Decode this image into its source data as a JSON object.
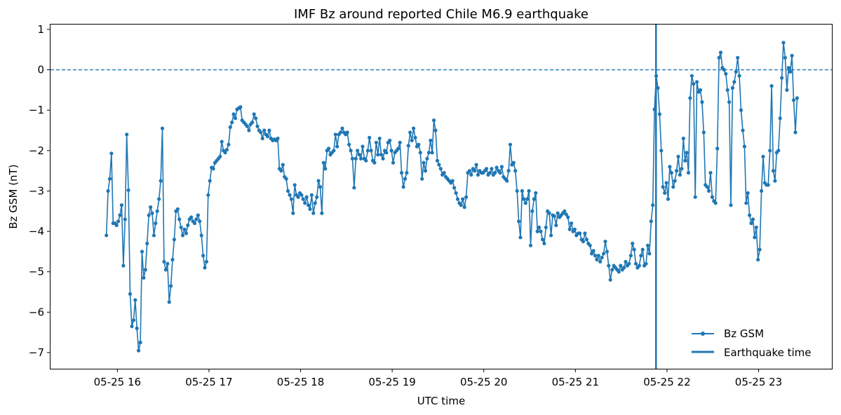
{
  "chart_data": {
    "type": "line",
    "title": "IMF Bz around reported Chile M6.9 earthquake",
    "xlabel": "UTC time",
    "ylabel": "Bz GSM (nT)",
    "x_ticks": [
      "05-25 16",
      "05-25 17",
      "05-25 18",
      "05-25 19",
      "05-25 20",
      "05-25 21",
      "05-25 22",
      "05-25 23"
    ],
    "y_ticks": [
      -7,
      -6,
      -5,
      -4,
      -3,
      -2,
      -1,
      0,
      1
    ],
    "xlim_hours": [
      15.27,
      23.8
    ],
    "ylim": [
      -7.4,
      1.12
    ],
    "grid": false,
    "legend_position": "lower-right",
    "colors": {
      "series": "#1f77b4"
    },
    "reference_line": {
      "y": 0,
      "style": "dashed"
    },
    "event": {
      "name": "Earthquake time",
      "x_hour": 21.88
    },
    "series": [
      {
        "name": "Bz GSM",
        "x_start_hour": 15.88,
        "x_end_hour": 23.42,
        "values": [
          -4.1,
          -3.0,
          -2.7,
          -2.07,
          -3.8,
          -3.8,
          -3.85,
          -3.75,
          -3.6,
          -3.35,
          -4.85,
          -3.7,
          -1.6,
          -2.98,
          -5.55,
          -6.35,
          -6.2,
          -5.7,
          -6.4,
          -6.95,
          -6.75,
          -4.5,
          -5.15,
          -4.95,
          -4.3,
          -3.6,
          -3.4,
          -3.55,
          -4.1,
          -3.8,
          -3.5,
          -3.2,
          -2.75,
          -1.45,
          -4.75,
          -4.95,
          -4.8,
          -5.75,
          -5.35,
          -4.7,
          -4.2,
          -3.5,
          -3.45,
          -3.7,
          -3.9,
          -4.1,
          -3.95,
          -4.05,
          -3.85,
          -3.7,
          -3.65,
          -3.75,
          -3.8,
          -3.7,
          -3.6,
          -3.75,
          -4.1,
          -4.6,
          -4.9,
          -4.75,
          -3.1,
          -2.75,
          -2.42,
          -2.45,
          -2.3,
          -2.25,
          -2.2,
          -2.15,
          -1.78,
          -2.0,
          -2.05,
          -1.98,
          -1.85,
          -1.42,
          -1.3,
          -1.1,
          -1.2,
          -0.98,
          -0.95,
          -0.92,
          -1.25,
          -1.3,
          -1.35,
          -1.4,
          -1.5,
          -1.35,
          -1.3,
          -1.1,
          -1.2,
          -1.4,
          -1.5,
          -1.55,
          -1.7,
          -1.5,
          -1.6,
          -1.65,
          -1.5,
          -1.7,
          -1.75,
          -1.72,
          -1.75,
          -1.7,
          -2.45,
          -2.5,
          -2.35,
          -2.65,
          -2.7,
          -3.0,
          -3.1,
          -3.2,
          -3.55,
          -2.85,
          -3.1,
          -3.15,
          -3.05,
          -3.1,
          -3.2,
          -3.3,
          -3.15,
          -3.35,
          -3.45,
          -3.1,
          -3.55,
          -3.3,
          -3.15,
          -2.75,
          -2.9,
          -3.55,
          -2.3,
          -2.45,
          -2.0,
          -1.95,
          -2.1,
          -2.05,
          -2.0,
          -1.6,
          -1.9,
          -1.6,
          -1.55,
          -1.45,
          -1.55,
          -1.6,
          -1.55,
          -1.85,
          -2.0,
          -2.2,
          -2.92,
          -2.2,
          -2.0,
          -2.1,
          -2.2,
          -1.9,
          -2.2,
          -2.25,
          -2.0,
          -1.68,
          -2.0,
          -2.25,
          -2.3,
          -1.8,
          -2.1,
          -1.7,
          -2.1,
          -2.2,
          -2.0,
          -2.05,
          -1.8,
          -1.75,
          -2.0,
          -2.3,
          -2.05,
          -2.0,
          -1.95,
          -1.8,
          -2.55,
          -2.9,
          -2.7,
          -2.55,
          -1.88,
          -1.55,
          -1.75,
          -1.45,
          -1.68,
          -1.9,
          -1.85,
          -2.05,
          -2.7,
          -2.3,
          -2.5,
          -2.2,
          -2.05,
          -1.75,
          -2.05,
          -1.25,
          -1.5,
          -2.25,
          -2.35,
          -2.45,
          -2.6,
          -2.55,
          -2.65,
          -2.7,
          -2.75,
          -2.8,
          -2.75,
          -2.92,
          -3.05,
          -3.2,
          -3.3,
          -3.35,
          -3.2,
          -3.4,
          -3.15,
          -2.55,
          -2.5,
          -2.6,
          -2.45,
          -2.5,
          -2.35,
          -2.6,
          -2.5,
          -2.55,
          -2.55,
          -2.5,
          -2.45,
          -2.6,
          -2.55,
          -2.45,
          -2.6,
          -2.55,
          -2.42,
          -2.5,
          -2.55,
          -2.4,
          -2.65,
          -2.7,
          -2.75,
          -2.5,
          -1.85,
          -2.35,
          -2.3,
          -2.5,
          -3.0,
          -3.75,
          -4.15,
          -3.0,
          -3.2,
          -3.3,
          -3.2,
          -3.0,
          -4.35,
          -3.5,
          -3.2,
          -3.05,
          -4.0,
          -3.9,
          -4.0,
          -4.2,
          -4.3,
          -3.9,
          -3.5,
          -3.55,
          -4.1,
          -3.6,
          -3.62,
          -3.85,
          -3.55,
          -3.65,
          -3.6,
          -3.55,
          -3.5,
          -3.58,
          -3.65,
          -3.95,
          -3.8,
          -4.0,
          -3.95,
          -4.1,
          -4.05,
          -4.05,
          -4.2,
          -4.25,
          -4.05,
          -4.2,
          -4.3,
          -4.35,
          -4.55,
          -4.48,
          -4.6,
          -4.7,
          -4.6,
          -4.75,
          -4.65,
          -4.55,
          -4.25,
          -4.5,
          -4.85,
          -5.2,
          -4.95,
          -4.85,
          -4.9,
          -4.95,
          -5.0,
          -4.85,
          -4.95,
          -4.9,
          -4.75,
          -4.85,
          -4.8,
          -4.6,
          -4.3,
          -4.45,
          -4.8,
          -4.9,
          -4.85,
          -4.6,
          -4.45,
          -4.85,
          -4.8,
          -4.35,
          -4.55,
          -3.75,
          -3.35,
          -0.98,
          -0.15,
          -0.45,
          -1.1,
          -2.0,
          -2.9,
          -3.05,
          -2.8,
          -3.2,
          -2.4,
          -2.55,
          -2.9,
          -2.75,
          -2.5,
          -2.15,
          -2.6,
          -2.45,
          -1.7,
          -2.25,
          -2.05,
          -2.55,
          -0.7,
          -0.15,
          -0.35,
          -3.15,
          -0.3,
          -0.55,
          -0.5,
          -0.8,
          -1.55,
          -2.85,
          -2.9,
          -3.0,
          -2.55,
          -3.15,
          -3.25,
          -3.3,
          -1.95,
          0.3,
          0.43,
          0.05,
          0.0,
          -0.1,
          -0.5,
          -0.8,
          -3.35,
          -0.45,
          -0.3,
          -0.05,
          0.3,
          -0.15,
          -1.0,
          -1.5,
          -1.9,
          -3.3,
          -3.05,
          -3.6,
          -3.8,
          -3.7,
          -4.15,
          -3.9,
          -4.7,
          -4.45,
          -3.0,
          -2.15,
          -2.8,
          -2.85,
          -2.85,
          -2.0,
          -0.4,
          -2.5,
          -2.75,
          -2.05,
          -2.0,
          -1.2,
          -0.2,
          0.67,
          0.3,
          -0.5,
          0.05,
          -0.05,
          0.35,
          -0.75,
          -1.55,
          -0.7
        ]
      }
    ]
  }
}
